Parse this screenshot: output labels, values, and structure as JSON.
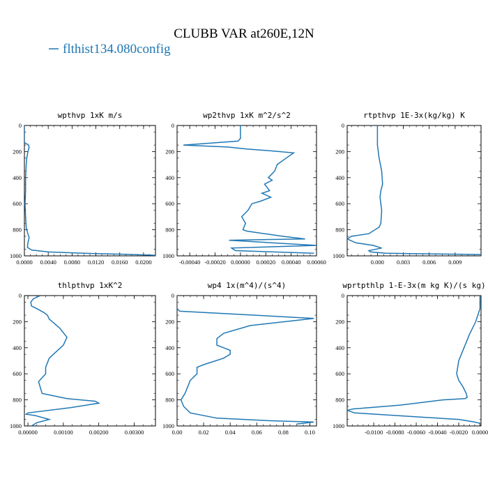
{
  "figure": {
    "title": "CLUBB VAR at260E,12N",
    "legend_label": "flthist134.080config",
    "line_color": "#1f77b4"
  },
  "chart_data": [
    {
      "type": "line",
      "title": "wpthvp   1xK m/s",
      "xlim": [
        0,
        0.022
      ],
      "ylim": [
        1000,
        0
      ],
      "x_ticks": [
        0,
        0.004,
        0.008,
        0.012,
        0.016,
        0.02
      ],
      "x_tick_labels": [
        "0.0000",
        "0.0040",
        "0.0080",
        "0.0120",
        "0.0160",
        "0.0200"
      ],
      "y_ticks": [
        0,
        200,
        400,
        600,
        800,
        1000
      ],
      "y_tick_labels": [
        "0",
        "200",
        "400",
        "600",
        "800",
        "1000"
      ],
      "series": [
        {
          "x": [
            0,
            0,
            0.0003,
            0.0006,
            0.0008,
            0.0006,
            0.0004,
            0.0003,
            0.0002,
            0.0002,
            0.0001,
            0.0002,
            0.0003,
            0.0005,
            0.0008,
            0.0006,
            0.0005,
            0.0012,
            0.004,
            0.01,
            0.017,
            0.022
          ],
          "y": [
            0,
            130,
            140,
            145,
            165,
            200,
            250,
            300,
            400,
            500,
            600,
            700,
            780,
            820,
            860,
            900,
            935,
            955,
            970,
            980,
            988,
            995
          ]
        }
      ]
    },
    {
      "type": "line",
      "title": "wp2thvp   1xK m^2/s^2",
      "xlim": [
        -0.0005,
        0.0006
      ],
      "ylim": [
        1000,
        0
      ],
      "x_ticks": [
        -0.0004,
        -0.0002,
        0,
        0.0002,
        0.0004,
        0.0006
      ],
      "x_tick_labels": [
        "-0.00040",
        "-0.00020",
        "0.00000",
        "0.00020",
        "0.00040",
        "0.00060"
      ],
      "y_ticks": [
        0,
        200,
        400,
        600,
        800,
        1000
      ],
      "y_tick_labels": [
        "0",
        "200",
        "400",
        "600",
        "800",
        "1000"
      ],
      "series": [
        {
          "x": [
            0,
            0,
            -2e-05,
            -0.00045,
            -0.0001,
            5e-05,
            0.00025,
            0.00042,
            0.00036,
            0.00029,
            0.00027,
            0.00022,
            0.00025,
            0.00019,
            0.00023,
            0.00017,
            0.00024,
            0.00016,
            9e-05,
            6e-05,
            1e-05,
            4e-05,
            2e-05,
            5e-05,
            0.00033,
            0.00051,
            -9e-05,
            0.0006,
            -7e-05,
            -4e-05,
            0.00058
          ],
          "y": [
            0,
            100,
            120,
            150,
            165,
            180,
            195,
            210,
            250,
            300,
            350,
            400,
            420,
            450,
            500,
            520,
            550,
            580,
            600,
            650,
            700,
            750,
            800,
            810,
            850,
            870,
            880,
            920,
            940,
            960,
            980
          ]
        }
      ]
    },
    {
      "type": "line",
      "title": "rtpthvp   1E-3x(kg/kg) K",
      "xlim": [
        -0.0035,
        0.012
      ],
      "ylim": [
        1000,
        0
      ],
      "x_ticks": [
        0,
        0.003,
        0.006,
        0.009
      ],
      "x_tick_labels": [
        "0.000",
        "0.003",
        "0.006",
        "0.009"
      ],
      "y_ticks": [
        0,
        200,
        400,
        600,
        800,
        1000
      ],
      "y_tick_labels": [
        "0",
        "200",
        "400",
        "600",
        "800",
        "1000"
      ],
      "series": [
        {
          "x": [
            0,
            0,
            0.0002,
            0.0005,
            0.0006,
            0.0004,
            0.0003,
            0.0005,
            0.0004,
            0.0002,
            -0.001,
            -0.003,
            -0.0035,
            -0.0025,
            -0.0005,
            0.0005,
            -0.001,
            -0.0008,
            0.001,
            0.0065,
            0.012
          ],
          "y": [
            0,
            150,
            250,
            350,
            450,
            500,
            550,
            650,
            750,
            780,
            830,
            850,
            870,
            900,
            920,
            940,
            960,
            970,
            980,
            985,
            990
          ]
        }
      ]
    },
    {
      "type": "line",
      "title": "thlpthvp   1xK^2",
      "xlim": [
        -0.0001,
        0.0036
      ],
      "ylim": [
        1000,
        0
      ],
      "x_ticks": [
        0,
        0.001,
        0.002,
        0.003
      ],
      "x_tick_labels": [
        "0.00000",
        "0.00100",
        "0.00200",
        "0.00300"
      ],
      "y_ticks": [
        0,
        200,
        400,
        600,
        800,
        1000
      ],
      "y_tick_labels": [
        "0",
        "200",
        "400",
        "600",
        "800",
        "1000"
      ],
      "series": [
        {
          "x": [
            0.00035,
            0.00015,
            8e-05,
            0.0001,
            0.00025,
            0.00045,
            0.00055,
            0.0006,
            0.0009,
            0.0011,
            0.001,
            0.0008,
            0.0006,
            0.0005,
            0.0005,
            0.0004,
            0.0003,
            0.0004,
            0.0011,
            0.0019,
            0.002,
            0.0012,
            0,
            -5e-05,
            0.0002,
            0.0006,
            0.00025,
            0.0001
          ],
          "y": [
            0,
            25,
            50,
            80,
            100,
            130,
            150,
            180,
            250,
            320,
            380,
            430,
            480,
            550,
            600,
            630,
            660,
            750,
            790,
            810,
            825,
            860,
            900,
            910,
            920,
            950,
            975,
            1000
          ]
        }
      ]
    },
    {
      "type": "line",
      "title": "wp4   1x(m^4)/(s^4)",
      "xlim": [
        0,
        0.105
      ],
      "ylim": [
        1000,
        0
      ],
      "x_ticks": [
        0,
        0.02,
        0.04,
        0.06,
        0.08,
        0.1
      ],
      "x_tick_labels": [
        "0.00",
        "0.02",
        "0.04",
        "0.06",
        "0.08",
        "0.10"
      ],
      "y_ticks": [
        0,
        200,
        400,
        600,
        800,
        1000
      ],
      "y_tick_labels": [
        "0",
        "200",
        "400",
        "600",
        "800",
        "1000"
      ],
      "series": [
        {
          "x": [
            0,
            0,
            0.002,
            0.103,
            0.055,
            0.035,
            0.03,
            0.03,
            0.035,
            0.04,
            0.04,
            0.035,
            0.02,
            0.015,
            0.015,
            0.01,
            0.008,
            0.006,
            0.003,
            0.005,
            0.01,
            0.03,
            0.07,
            0.103,
            0.09
          ],
          "y": [
            0,
            100,
            120,
            175,
            230,
            290,
            330,
            380,
            400,
            420,
            450,
            480,
            530,
            550,
            600,
            650,
            700,
            750,
            800,
            850,
            900,
            940,
            960,
            970,
            985
          ]
        }
      ]
    },
    {
      "type": "line",
      "title": "wprtpthlp   1-E-3x(m kg K)/(s kg)",
      "xlim": [
        -0.0125,
        0.0001
      ],
      "ylim": [
        1000,
        0
      ],
      "x_ticks": [
        -0.01,
        -0.008,
        -0.006,
        -0.004,
        -0.002,
        0
      ],
      "x_tick_labels": [
        "-0.0100",
        "-0.0080",
        "-0.0060",
        "-0.0040",
        "-0.0020",
        "0.0000"
      ],
      "y_ticks": [
        0,
        200,
        400,
        600,
        800,
        1000
      ],
      "y_tick_labels": [
        "0",
        "200",
        "400",
        "600",
        "800",
        "1000"
      ],
      "series": [
        {
          "x": [
            0,
            0,
            -0.0002,
            -0.0004,
            -0.001,
            -0.0015,
            -0.002,
            -0.0022,
            -0.002,
            -0.0016,
            -0.0013,
            -0.0012,
            -0.0014,
            -0.0035,
            -0.0075,
            -0.012,
            -0.0125,
            -0.0118,
            -0.006,
            -0.002,
            -0.0005,
            0
          ],
          "y": [
            0,
            100,
            150,
            200,
            300,
            400,
            500,
            600,
            650,
            700,
            750,
            780,
            790,
            800,
            840,
            870,
            880,
            900,
            930,
            950,
            970,
            980
          ]
        }
      ]
    }
  ]
}
